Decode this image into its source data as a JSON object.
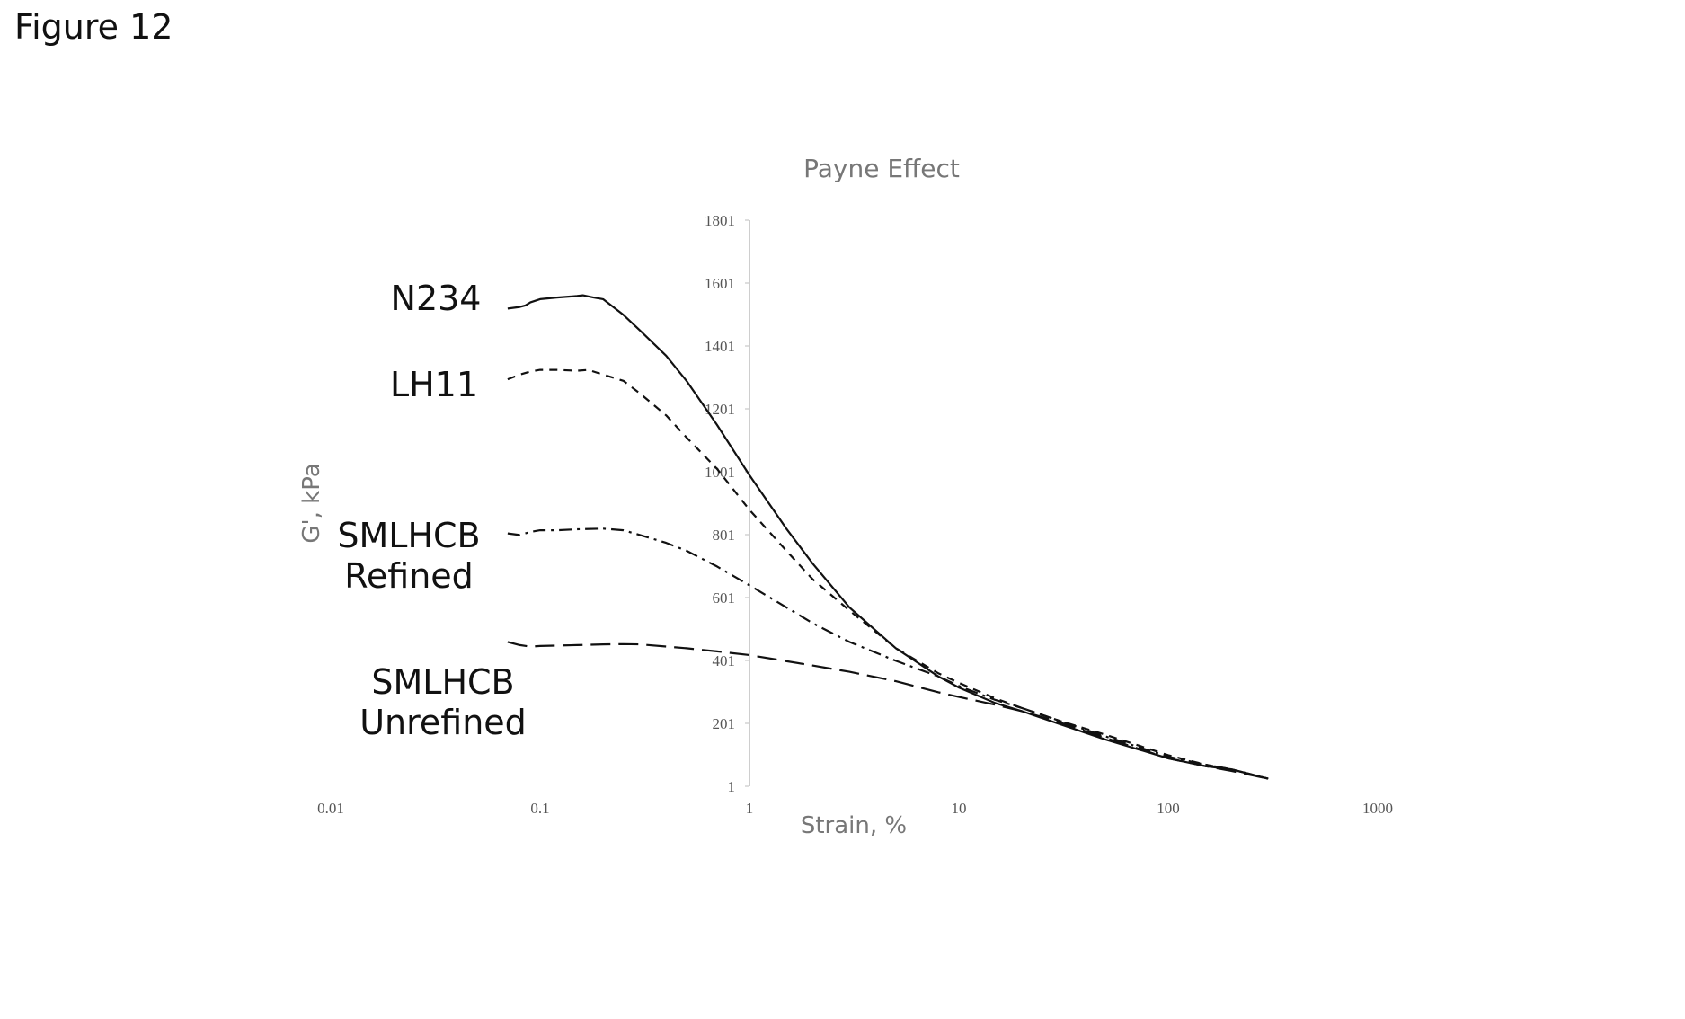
{
  "figure_label": "Figure 12",
  "chart_data": {
    "type": "line",
    "title": "Payne Effect",
    "xlabel": "Strain, %",
    "ylabel": "G', kPa",
    "x_scale": "log",
    "xlim": [
      0.01,
      1000
    ],
    "ylim": [
      1,
      1801
    ],
    "x_ticks": [
      "0.01",
      "0.1",
      "1",
      "10",
      "100",
      "1000"
    ],
    "y_ticks": [
      "1",
      "201",
      "401",
      "601",
      "801",
      "1001",
      "1201",
      "1401",
      "1601",
      "1801"
    ],
    "y_axis_crosses_x_at": 1,
    "grid": false,
    "series": [
      {
        "name": "N234",
        "label_lines": [
          "N234"
        ],
        "style": "solid",
        "x": [
          0.07,
          0.08,
          0.085,
          0.09,
          0.1,
          0.12,
          0.15,
          0.16,
          0.18,
          0.2,
          0.25,
          0.3,
          0.4,
          0.5,
          0.7,
          1.0,
          1.5,
          2,
          3,
          5,
          8,
          10,
          15,
          20,
          30,
          50,
          100,
          150,
          200,
          300
        ],
        "y": [
          1520,
          1525,
          1530,
          1540,
          1550,
          1555,
          1560,
          1562,
          1555,
          1550,
          1500,
          1450,
          1370,
          1290,
          1150,
          990,
          820,
          710,
          570,
          440,
          350,
          315,
          265,
          240,
          200,
          150,
          90,
          65,
          55,
          25
        ]
      },
      {
        "name": "LH11",
        "label_lines": [
          "LH11"
        ],
        "style": "dashed",
        "x": [
          0.07,
          0.08,
          0.09,
          0.1,
          0.12,
          0.15,
          0.17,
          0.2,
          0.25,
          0.3,
          0.4,
          0.5,
          0.7,
          1.0,
          1.5,
          2,
          3,
          5,
          8,
          10,
          15,
          20,
          30,
          50,
          100,
          150,
          200,
          300
        ],
        "y": [
          1295,
          1310,
          1320,
          1325,
          1325,
          1322,
          1325,
          1310,
          1290,
          1250,
          1180,
          1110,
          1010,
          880,
          750,
          660,
          560,
          440,
          360,
          330,
          280,
          250,
          210,
          165,
          100,
          70,
          55,
          25
        ]
      },
      {
        "name": "SMLHCB Refined",
        "label_lines": [
          "SMLHCB",
          "Refined"
        ],
        "style": "dash-dot",
        "x": [
          0.07,
          0.08,
          0.09,
          0.1,
          0.12,
          0.15,
          0.2,
          0.25,
          0.3,
          0.4,
          0.5,
          0.7,
          1.0,
          1.5,
          2,
          3,
          5,
          8,
          10,
          15,
          20,
          30,
          50,
          100,
          150,
          200,
          300
        ],
        "y": [
          805,
          800,
          810,
          815,
          815,
          818,
          820,
          815,
          800,
          775,
          750,
          700,
          640,
          570,
          520,
          460,
          400,
          350,
          320,
          275,
          250,
          210,
          160,
          95,
          70,
          55,
          25
        ]
      },
      {
        "name": "SMLHCB Unrefined",
        "label_lines": [
          "SMLHCB",
          "Unrefined"
        ],
        "style": "long-dash",
        "x": [
          0.07,
          0.08,
          0.09,
          0.1,
          0.15,
          0.2,
          0.25,
          0.3,
          0.5,
          0.7,
          1.0,
          2,
          3,
          5,
          8,
          10,
          15,
          20,
          30,
          50,
          100,
          150,
          200,
          300
        ],
        "y": [
          460,
          450,
          445,
          447,
          450,
          452,
          453,
          452,
          440,
          430,
          418,
          385,
          365,
          335,
          300,
          285,
          260,
          240,
          205,
          155,
          90,
          65,
          50,
          25
        ]
      }
    ]
  }
}
